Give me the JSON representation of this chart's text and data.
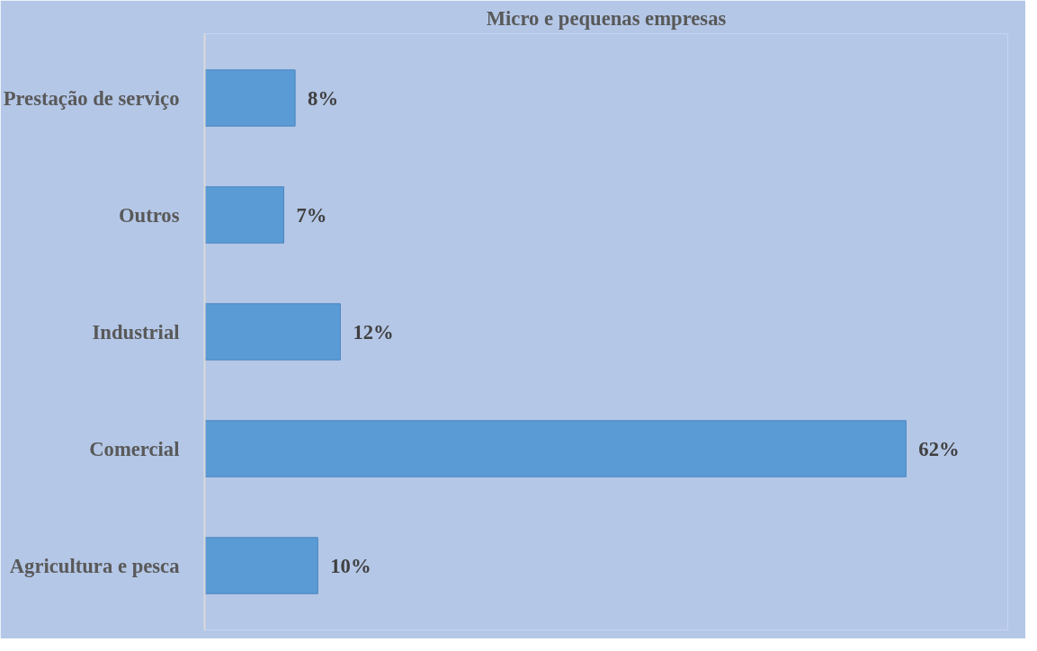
{
  "chart_data": {
    "type": "bar",
    "orientation": "horizontal",
    "title": "Micro e pequenas empresas",
    "categories": [
      "Prestação de serviço",
      "Outros",
      "Industrial",
      "Comercial",
      "Agricultura e pesca"
    ],
    "values": [
      8,
      7,
      12,
      62,
      10
    ],
    "value_labels": [
      "8%",
      "7%",
      "12%",
      "62%",
      "10%"
    ],
    "color": "#5b9bd5",
    "xlim": [
      0,
      71
    ],
    "grid": false,
    "tick_labels": "y"
  }
}
